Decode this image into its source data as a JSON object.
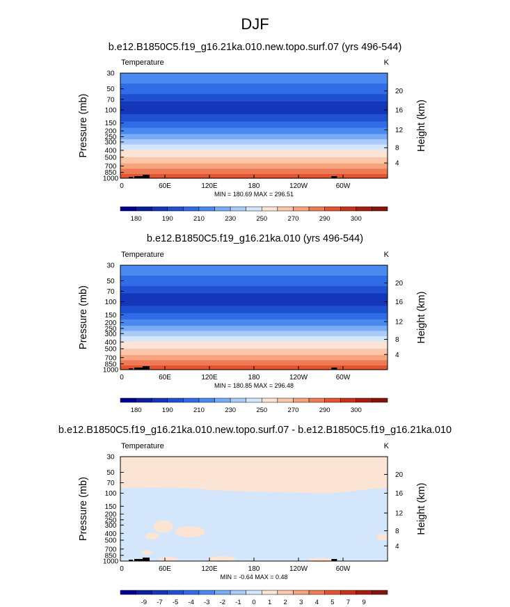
{
  "main_title": "DJF",
  "chart_data": [
    {
      "type": "heatmap",
      "title": "b.e12.B1850C5.f19_g16.21ka.010.new.topo.surf.07 (yrs 496-544)",
      "left_label": "Temperature",
      "right_label": "K",
      "ylabel": "Pressure (mb)",
      "ylabel_right": "Height (km)",
      "xticks": [
        "0",
        "60E",
        "120E",
        "180",
        "120W",
        "60W"
      ],
      "pressure_ticks": [
        "30",
        "50",
        "70",
        "100",
        "150",
        "200",
        "250",
        "300",
        "400",
        "500",
        "700",
        "850",
        "1000"
      ],
      "height_ticks": [
        "4",
        "8",
        "12",
        "16",
        "20"
      ],
      "stats": "MIN = 180.69  MAX = 296.51",
      "colorbar_labels": [
        "180",
        "190",
        "210",
        "230",
        "250",
        "270",
        "290",
        "300"
      ],
      "colorbar_colors": [
        "#00008c",
        "#0a1e9e",
        "#1436b8",
        "#1f50d2",
        "#2f6ce6",
        "#4a8af0",
        "#78acf6",
        "#a9cbfa",
        "#d4e6fc",
        "#fbe4d4",
        "#fbc7a8",
        "#f6a37e",
        "#ee7b55",
        "#e2552f",
        "#c83219",
        "#a51d0c",
        "#86140a"
      ],
      "band_colors_top_to_bottom": [
        "#4a8af0",
        "#2f6ce6",
        "#1f50d2",
        "#1436b8",
        "#1f50d2",
        "#2f6ce6",
        "#4a8af0",
        "#78acf6",
        "#a9cbfa",
        "#d4e6fc",
        "#fbe4d4",
        "#fbc7a8",
        "#f6a37e",
        "#ee7b55",
        "#e2552f"
      ]
    },
    {
      "type": "heatmap",
      "title": "b.e12.B1850C5.f19_g16.21ka.010 (yrs 496-544)",
      "left_label": "Temperature",
      "right_label": "K",
      "ylabel": "Pressure (mb)",
      "ylabel_right": "Height (km)",
      "xticks": [
        "0",
        "60E",
        "120E",
        "180",
        "120W",
        "60W"
      ],
      "pressure_ticks": [
        "30",
        "50",
        "70",
        "100",
        "150",
        "200",
        "250",
        "300",
        "400",
        "500",
        "700",
        "850",
        "1000"
      ],
      "height_ticks": [
        "4",
        "8",
        "12",
        "16",
        "20"
      ],
      "stats": "MIN = 180.85  MAX = 296.48",
      "colorbar_labels": [
        "180",
        "190",
        "210",
        "230",
        "250",
        "270",
        "290",
        "300"
      ],
      "colorbar_colors": [
        "#00008c",
        "#0a1e9e",
        "#1436b8",
        "#1f50d2",
        "#2f6ce6",
        "#4a8af0",
        "#78acf6",
        "#a9cbfa",
        "#d4e6fc",
        "#fbe4d4",
        "#fbc7a8",
        "#f6a37e",
        "#ee7b55",
        "#e2552f",
        "#c83219",
        "#a51d0c",
        "#86140a"
      ],
      "band_colors_top_to_bottom": [
        "#4a8af0",
        "#2f6ce6",
        "#1f50d2",
        "#1436b8",
        "#1f50d2",
        "#2f6ce6",
        "#4a8af0",
        "#78acf6",
        "#a9cbfa",
        "#d4e6fc",
        "#fbe4d4",
        "#fbc7a8",
        "#f6a37e",
        "#ee7b55",
        "#e2552f"
      ]
    },
    {
      "type": "heatmap",
      "title": "b.e12.B1850C5.f19_g16.21ka.010.new.topo.surf.07 - b.e12.B1850C5.f19_g16.21ka.010",
      "left_label": "Temperature",
      "right_label": "K",
      "ylabel": "Pressure (mb)",
      "ylabel_right": "Height (km)",
      "xticks": [
        "0",
        "60E",
        "120E",
        "180",
        "120W",
        "60W"
      ],
      "pressure_ticks": [
        "30",
        "50",
        "70",
        "100",
        "150",
        "200",
        "250",
        "300",
        "400",
        "500",
        "700",
        "850",
        "1000"
      ],
      "height_ticks": [
        "4",
        "8",
        "12",
        "16",
        "20"
      ],
      "stats": "MIN = -0.64  MAX =  0.48",
      "colorbar_labels": [
        "-9",
        "-7",
        "-5",
        "-4",
        "-3",
        "-2",
        "-1",
        "0",
        "1",
        "2",
        "3",
        "4",
        "5",
        "7",
        "9"
      ],
      "colorbar_colors": [
        "#00008c",
        "#0a1e9e",
        "#1436b8",
        "#1f50d2",
        "#2f6ce6",
        "#4a8af0",
        "#78acf6",
        "#a9cbfa",
        "#d4e6fc",
        "#fbe4d4",
        "#fbc7a8",
        "#f6a37e",
        "#ee7b55",
        "#e2552f",
        "#c83219",
        "#a51d0c",
        "#86140a"
      ],
      "field_colors": {
        "positive": "#fbe4d4",
        "negative": "#d4e6fc"
      }
    }
  ]
}
